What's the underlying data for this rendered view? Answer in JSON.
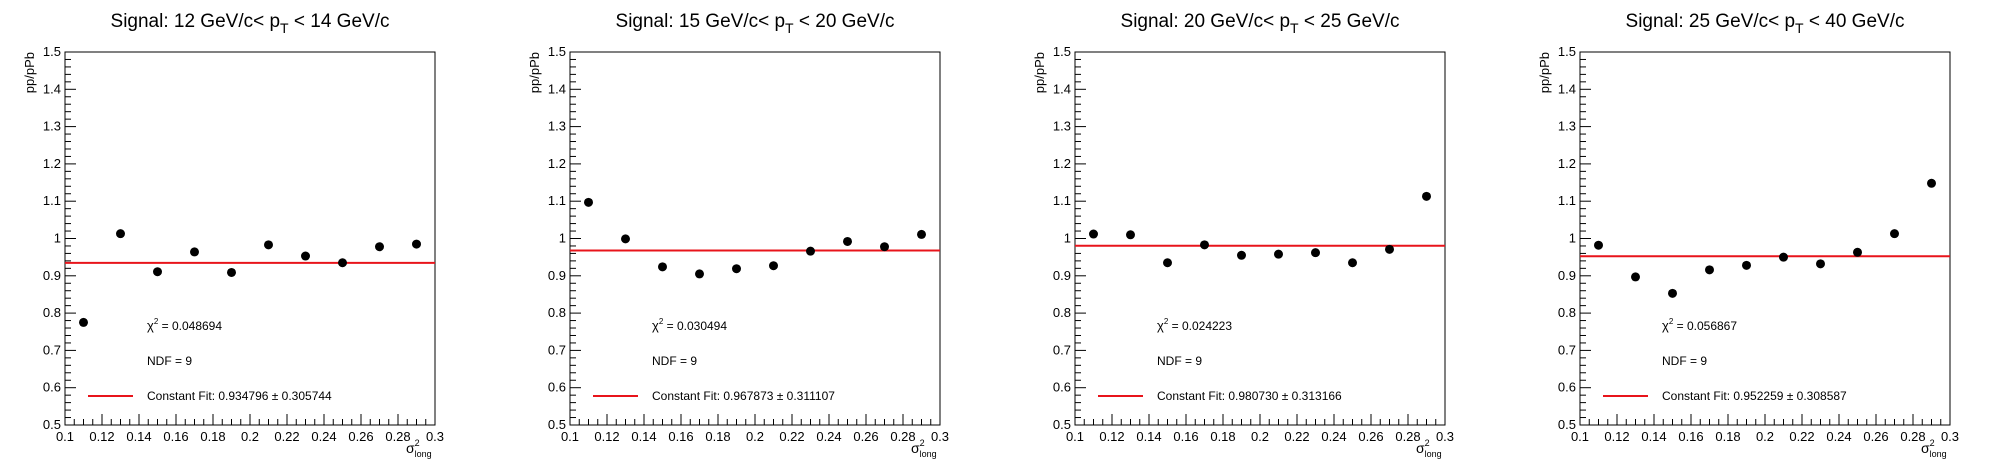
{
  "chart_data": [
    {
      "type": "scatter",
      "title_main": "Signal: 12 GeV/c< p",
      "title_sub": "T",
      "title_rest": " < 14 GeV/c",
      "xlabel": "σ",
      "xlabel_sup": "2",
      "xlabel_sub": "long",
      "ylabel": "pp/pPb",
      "xlim": [
        0.1,
        0.3
      ],
      "ylim": [
        0.5,
        1.5
      ],
      "x_ticks": [
        "0.1",
        "0.12",
        "0.14",
        "0.16",
        "0.18",
        "0.2",
        "0.22",
        "0.24",
        "0.26",
        "0.28",
        "0.3"
      ],
      "y_ticks": [
        "0.5",
        "0.6",
        "0.7",
        "0.8",
        "0.9",
        "1",
        "1.1",
        "1.2",
        "1.3",
        "1.4",
        "1.5"
      ],
      "x": [
        0.11,
        0.13,
        0.15,
        0.17,
        0.19,
        0.21,
        0.23,
        0.25,
        0.27,
        0.29
      ],
      "y": [
        0.775,
        1.013,
        0.911,
        0.964,
        0.909,
        0.983,
        0.953,
        0.935,
        0.978,
        0.985
      ],
      "fit_value": 0.934796,
      "chi2_symbol": "χ",
      "chi2_sup": "2",
      "chi2_text": " = 0.048694",
      "ndf_text": "NDF = 9",
      "fit_label": "Constant Fit: 0.934796 ± 0.305744"
    },
    {
      "type": "scatter",
      "title_main": "Signal: 15 GeV/c< p",
      "title_sub": "T",
      "title_rest": " < 20 GeV/c",
      "xlabel": "σ",
      "xlabel_sup": "2",
      "xlabel_sub": "long",
      "ylabel": "pp/pPb",
      "xlim": [
        0.1,
        0.3
      ],
      "ylim": [
        0.5,
        1.5
      ],
      "x_ticks": [
        "0.1",
        "0.12",
        "0.14",
        "0.16",
        "0.18",
        "0.2",
        "0.22",
        "0.24",
        "0.26",
        "0.28",
        "0.3"
      ],
      "y_ticks": [
        "0.5",
        "0.6",
        "0.7",
        "0.8",
        "0.9",
        "1",
        "1.1",
        "1.2",
        "1.3",
        "1.4",
        "1.5"
      ],
      "x": [
        0.11,
        0.13,
        0.15,
        0.17,
        0.19,
        0.21,
        0.23,
        0.25,
        0.27,
        0.29
      ],
      "y": [
        1.097,
        0.999,
        0.924,
        0.905,
        0.919,
        0.927,
        0.966,
        0.992,
        0.978,
        1.011
      ],
      "fit_value": 0.967873,
      "chi2_symbol": "χ",
      "chi2_sup": "2",
      "chi2_text": " = 0.030494",
      "ndf_text": "NDF = 9",
      "fit_label": "Constant Fit: 0.967873 ± 0.311107"
    },
    {
      "type": "scatter",
      "title_main": "Signal: 20 GeV/c< p",
      "title_sub": "T",
      "title_rest": " < 25 GeV/c",
      "xlabel": "σ",
      "xlabel_sup": "2",
      "xlabel_sub": "long",
      "ylabel": "pp/pPb",
      "xlim": [
        0.1,
        0.3
      ],
      "ylim": [
        0.5,
        1.5
      ],
      "x_ticks": [
        "0.1",
        "0.12",
        "0.14",
        "0.16",
        "0.18",
        "0.2",
        "0.22",
        "0.24",
        "0.26",
        "0.28",
        "0.3"
      ],
      "y_ticks": [
        "0.5",
        "0.6",
        "0.7",
        "0.8",
        "0.9",
        "1",
        "1.1",
        "1.2",
        "1.3",
        "1.4",
        "1.5"
      ],
      "x": [
        0.11,
        0.13,
        0.15,
        0.17,
        0.19,
        0.21,
        0.23,
        0.25,
        0.27,
        0.29
      ],
      "y": [
        1.012,
        1.01,
        0.935,
        0.983,
        0.955,
        0.958,
        0.962,
        0.935,
        0.971,
        1.113
      ],
      "fit_value": 0.98073,
      "chi2_symbol": "χ",
      "chi2_sup": "2",
      "chi2_text": " = 0.024223",
      "ndf_text": "NDF = 9",
      "fit_label": "Constant Fit: 0.980730 ± 0.313166"
    },
    {
      "type": "scatter",
      "title_main": "Signal: 25 GeV/c< p",
      "title_sub": "T",
      "title_rest": " < 40 GeV/c",
      "xlabel": "σ",
      "xlabel_sup": "2",
      "xlabel_sub": "long",
      "ylabel": "pp/pPb",
      "xlim": [
        0.1,
        0.3
      ],
      "ylim": [
        0.5,
        1.5
      ],
      "x_ticks": [
        "0.1",
        "0.12",
        "0.14",
        "0.16",
        "0.18",
        "0.2",
        "0.22",
        "0.24",
        "0.26",
        "0.28",
        "0.3"
      ],
      "y_ticks": [
        "0.5",
        "0.6",
        "0.7",
        "0.8",
        "0.9",
        "1",
        "1.1",
        "1.2",
        "1.3",
        "1.4",
        "1.5"
      ],
      "x": [
        0.11,
        0.13,
        0.15,
        0.17,
        0.19,
        0.21,
        0.23,
        0.25,
        0.27,
        0.29
      ],
      "y": [
        0.982,
        0.897,
        0.853,
        0.916,
        0.928,
        0.95,
        0.932,
        0.963,
        1.013,
        1.148
      ],
      "fit_value": 0.952259,
      "chi2_symbol": "χ",
      "chi2_sup": "2",
      "chi2_text": " = 0.056867",
      "ndf_text": "NDF = 9",
      "fit_label": "Constant Fit: 0.952259 ± 0.308587"
    }
  ],
  "style": {
    "marker_color": "#000000",
    "fit_color": "#e8141b",
    "axis_color": "#000000",
    "background": "#ffffff",
    "marker": "filled-circle",
    "grid": false
  }
}
